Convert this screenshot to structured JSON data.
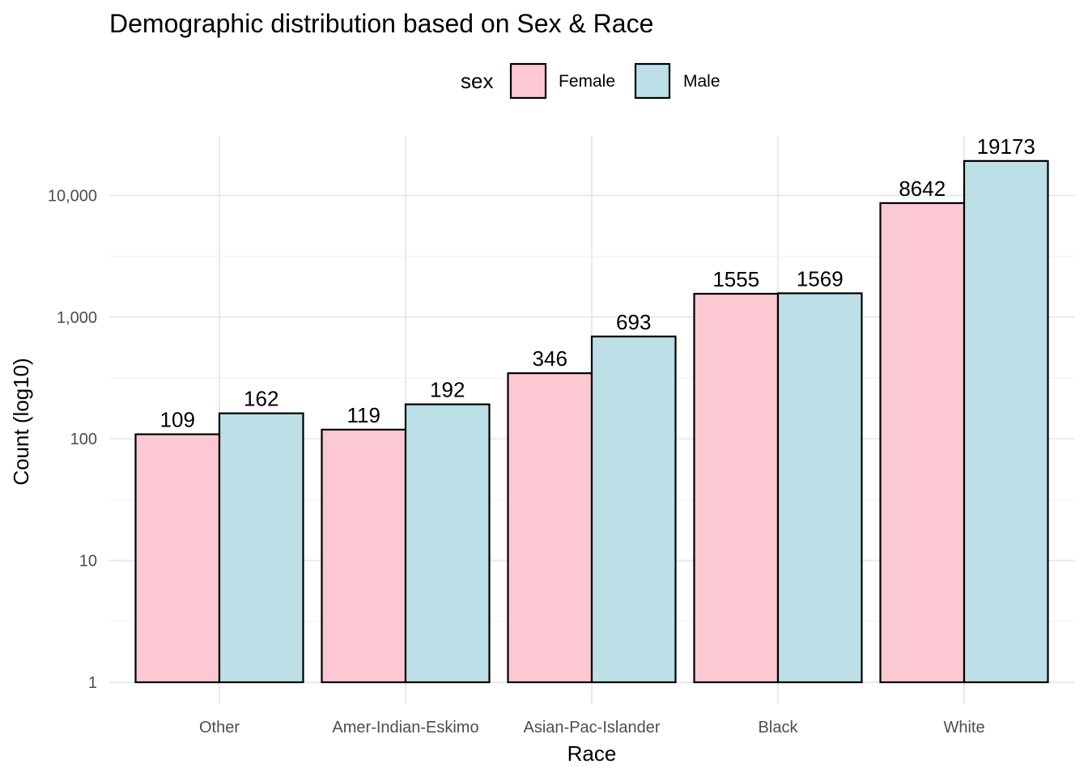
{
  "colors": {
    "female": "#fcc8d4",
    "male": "#bcdfe8",
    "grid_major": "#ebebeb",
    "grid_minor": "#f2f2f2",
    "outline": "#000000"
  },
  "chart_data": {
    "type": "bar",
    "title": "Demographic distribution based on Sex & Race",
    "xlabel": "Race",
    "ylabel": "Count (log10)",
    "yscale": "log10",
    "ylim": [
      1,
      30000
    ],
    "yticks": [
      1,
      10,
      100,
      1000,
      10000
    ],
    "ytick_labels": [
      "1",
      "10",
      "100",
      "1,000",
      "10,000"
    ],
    "grid": true,
    "legend": {
      "title": "sex",
      "placement": "top",
      "entries": [
        "Female",
        "Male"
      ]
    },
    "categories": [
      "Other",
      "Amer-Indian-Eskimo",
      "Asian-Pac-Islander",
      "Black",
      "White"
    ],
    "series": [
      {
        "name": "Female",
        "values": [
          109,
          119,
          346,
          1555,
          8642
        ]
      },
      {
        "name": "Male",
        "values": [
          162,
          192,
          693,
          1569,
          19173
        ]
      }
    ]
  }
}
